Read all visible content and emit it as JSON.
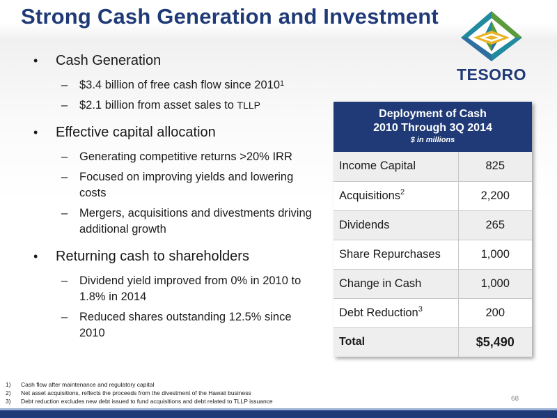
{
  "title": "Strong Cash Generation and Investment",
  "logo": {
    "text": "TESORO",
    "icon": "tesoro-logo-icon",
    "colors": {
      "green": "#5a9b3c",
      "teal": "#1f8aa0",
      "yellow": "#e9b321",
      "navy": "#1f3a77"
    }
  },
  "bullets": [
    {
      "text": "Cash Generation",
      "subs": [
        {
          "pre": "$3.4 billion of free cash flow since 2010",
          "sup": "1",
          "post": ""
        },
        {
          "pre": "$2.1 billion from asset sales to ",
          "small": "TLLP",
          "sup": "",
          "post": ""
        }
      ]
    },
    {
      "text": "Effective capital allocation",
      "subs": [
        {
          "pre": "Generating competitive returns >20% IRR",
          "sup": "",
          "post": ""
        },
        {
          "pre": "Focused on improving yields and lowering costs",
          "sup": "",
          "post": ""
        },
        {
          "pre": "Mergers, acquisitions and divestments driving additional growth",
          "sup": "",
          "post": ""
        }
      ]
    },
    {
      "text": "Returning cash to shareholders",
      "subs": [
        {
          "pre": "Dividend yield improved from 0% in 2010 to 1.8% in 2014",
          "sup": "",
          "post": ""
        },
        {
          "pre": "Reduced shares outstanding 12.5% since 2010",
          "sup": "",
          "post": ""
        }
      ]
    }
  ],
  "table": {
    "header_line1": "Deployment of Cash",
    "header_line2": "2010 Through 3Q 2014",
    "header_sub": "$ in millions",
    "rows": [
      {
        "label": "Income Capital",
        "sup": "",
        "value": "825"
      },
      {
        "label": "Acquisitions",
        "sup": "2",
        "value": "2,200"
      },
      {
        "label": "Dividends",
        "sup": "",
        "value": "265"
      },
      {
        "label": "Share Repurchases",
        "sup": "",
        "value": "1,000"
      },
      {
        "label": "Change in Cash",
        "sup": "",
        "value": "1,000"
      },
      {
        "label": "Debt Reduction",
        "sup": "3",
        "value": "200"
      }
    ],
    "total_label": "Total",
    "total_value": "$5,490"
  },
  "footnotes": [
    {
      "num": "1)",
      "text": "Cash flow after maintenance and regulatory capital"
    },
    {
      "num": "2)",
      "text": "Net asset acquisitions, reflects the proceeds from the divestment of the Hawaii business"
    },
    {
      "num": "3)",
      "text": "Debt reduction excludes new debt issued to fund acquisitions and debt related to TLLP issuance"
    }
  ],
  "page_number": "68",
  "colors": {
    "navy": "#1f3a77",
    "bar_light": "#9fb3d6"
  }
}
